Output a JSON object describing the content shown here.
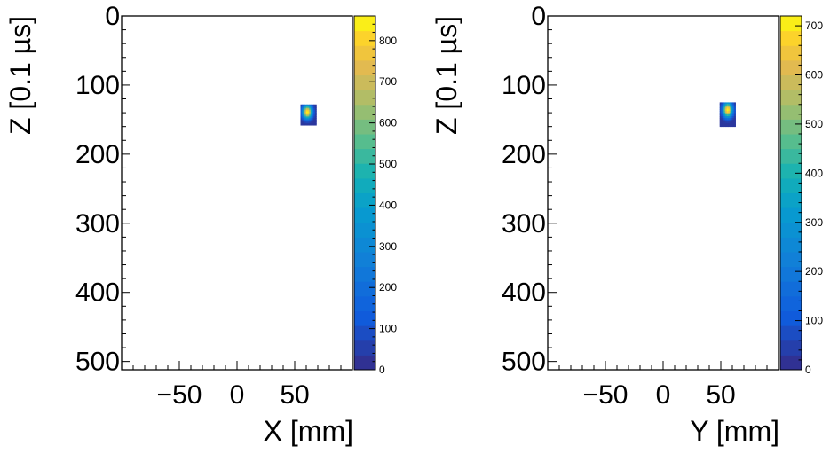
{
  "chart_data": [
    {
      "type": "heatmap",
      "xlabel": "X [mm]",
      "ylabel": "Z [0.1 µs]",
      "xlim": [
        -100,
        100
      ],
      "ylim": [
        0,
        512
      ],
      "y_inverted": true,
      "x_ticks": [
        "−50",
        "0",
        "50"
      ],
      "x_tick_values": [
        -50,
        0,
        50
      ],
      "y_ticks": [
        "0",
        "100",
        "200",
        "300",
        "400",
        "500"
      ],
      "y_tick_values": [
        0,
        100,
        200,
        300,
        400,
        500
      ],
      "colorbar": {
        "range": [
          0,
          860
        ],
        "ticks": [
          "0",
          "100",
          "200",
          "300",
          "400",
          "500",
          "600",
          "700",
          "800"
        ],
        "tick_values": [
          0,
          100,
          200,
          300,
          400,
          500,
          600,
          700,
          800
        ]
      },
      "cluster": {
        "x_range": [
          55,
          68
        ],
        "z_range": [
          128,
          158
        ],
        "peak": {
          "x": 61,
          "z": 139,
          "value": 860
        }
      }
    },
    {
      "type": "heatmap",
      "xlabel": "Y [mm]",
      "ylabel": "Z [0.1 µs]",
      "xlim": [
        -100,
        100
      ],
      "ylim": [
        0,
        512
      ],
      "y_inverted": true,
      "x_ticks": [
        "−50",
        "0",
        "50"
      ],
      "x_tick_values": [
        -50,
        0,
        50
      ],
      "y_ticks": [
        "0",
        "100",
        "200",
        "300",
        "400",
        "500"
      ],
      "y_tick_values": [
        0,
        100,
        200,
        300,
        400,
        500
      ],
      "colorbar": {
        "range": [
          0,
          720
        ],
        "ticks": [
          "0",
          "100",
          "200",
          "300",
          "400",
          "500",
          "600",
          "700"
        ],
        "tick_values": [
          0,
          100,
          200,
          300,
          400,
          500,
          600,
          700
        ]
      },
      "cluster": {
        "x_range": [
          49,
          62
        ],
        "z_range": [
          125,
          158
        ],
        "peak": {
          "x": 56,
          "z": 136,
          "value": 720
        }
      }
    }
  ]
}
